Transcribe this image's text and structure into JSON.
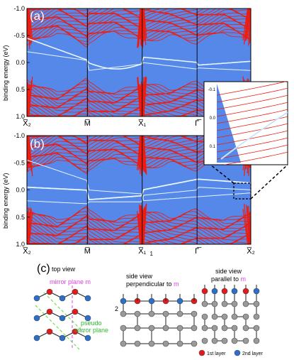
{
  "panels": {
    "a": {
      "label": "(a)"
    },
    "b": {
      "label": "(b)"
    },
    "c": {
      "label": "(c)"
    }
  },
  "axis": {
    "ylabel": "binding energy (eV)",
    "yticks": [
      "-1.0",
      "-0.5",
      "0.0",
      "0.5",
      "1.0"
    ],
    "kpoints": {
      "a": [
        "X̅₂",
        "M̅",
        "X̅₁",
        "Γ̅",
        "X̅₂"
      ],
      "b": [
        "X̅₂",
        "M̅",
        "X̅₁",
        "Γ̅",
        "X̅₂"
      ]
    },
    "b_extra_sub": "1"
  },
  "inset": {
    "yticks": [
      "-0.1",
      "0.0",
      "0.1"
    ]
  },
  "diagram": {
    "top_view": "top view",
    "mirror_plane": "mirror plane m",
    "pseudo_mirror_line1": "pseudo",
    "pseudo_mirror_line2": "mirror plane",
    "side_perp_line1": "side view",
    "side_perp_line2": "perpendicular to",
    "side_perp_m": "m",
    "side_par_line1": "side view",
    "side_par_line2": "parallel to",
    "side_par_m": "m",
    "side_label_2": "2",
    "legend_first": "1st layer",
    "legend_second": "2nd layer"
  },
  "colors": {
    "red": "#ee1c10",
    "blue": "#5588e8",
    "surface": "#e8f6ff",
    "atom_red": "#e31a1c",
    "atom_blue": "#2a6fc9",
    "atom_gray": "#9a9a9a",
    "mirror": "#e040e0",
    "pseudo": "#55dd33"
  }
}
